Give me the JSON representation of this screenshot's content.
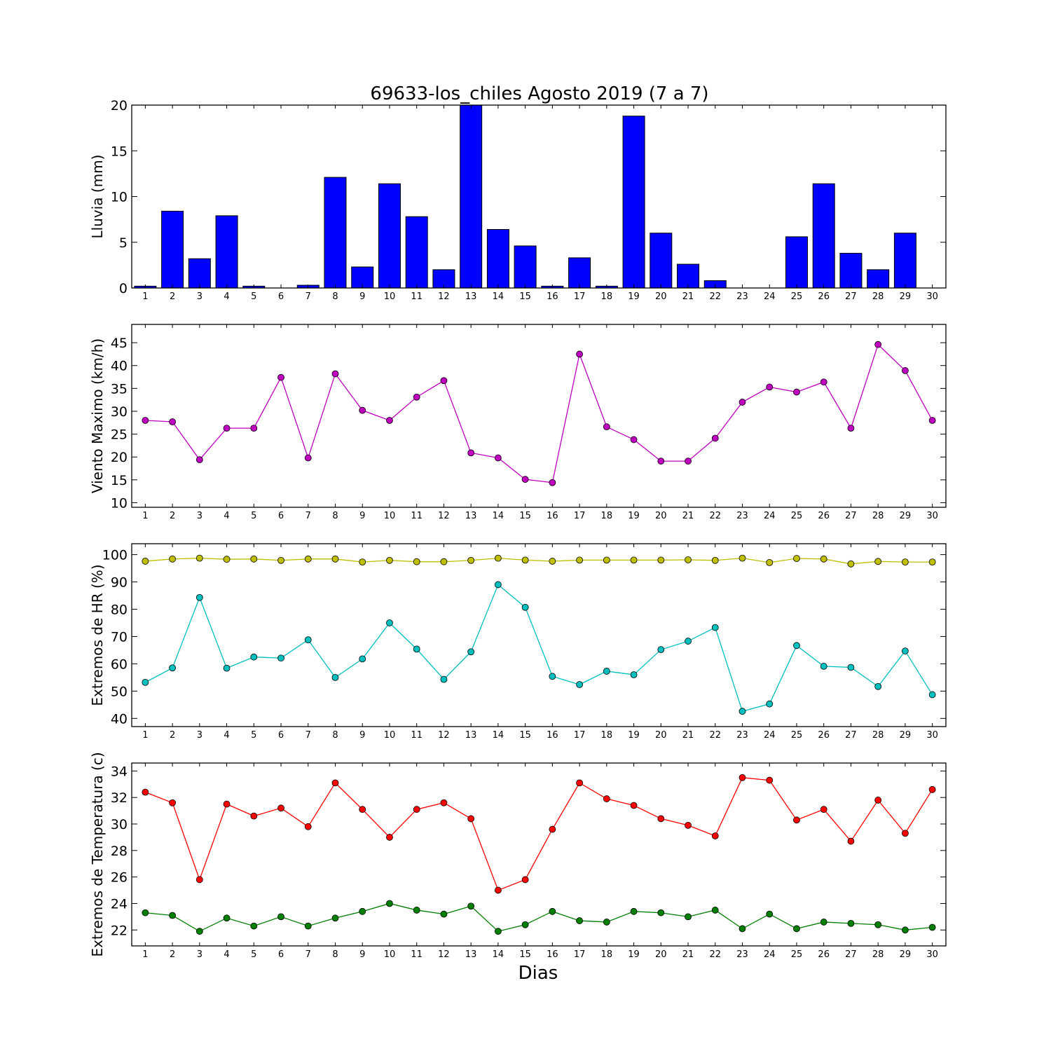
{
  "figure": {
    "title": "69633-los_chiles Agosto 2019  (7 a 7)",
    "xlabel": "Dias"
  },
  "chart_data": [
    {
      "type": "bar",
      "ylabel": "Lluvia (mm)",
      "ylim": [
        0,
        20
      ],
      "yticks": [
        0,
        5,
        10,
        15,
        20
      ],
      "grid": false,
      "categories": [
        "1",
        "2",
        "3",
        "4",
        "5",
        "6",
        "7",
        "8",
        "9",
        "10",
        "11",
        "12",
        "13",
        "14",
        "15",
        "16",
        "17",
        "18",
        "19",
        "20",
        "21",
        "22",
        "23",
        "24",
        "25",
        "26",
        "27",
        "28",
        "29",
        "30"
      ],
      "series": [
        {
          "color": "#0000ff",
          "values": [
            0.2,
            8.4,
            3.2,
            7.9,
            0.2,
            0,
            0.3,
            12.1,
            2.3,
            11.4,
            7.8,
            2.0,
            20.0,
            6.4,
            4.6,
            0.2,
            3.3,
            0.2,
            18.8,
            6.0,
            2.6,
            0.8,
            0,
            0,
            5.6,
            11.4,
            3.8,
            2.0,
            6.0,
            0
          ]
        }
      ]
    },
    {
      "type": "line",
      "ylabel": "Viento Maximo (km/h)",
      "ylim": [
        9,
        49
      ],
      "yticks": [
        10,
        15,
        20,
        25,
        30,
        35,
        40,
        45
      ],
      "grid": false,
      "categories": [
        "1",
        "2",
        "3",
        "4",
        "5",
        "6",
        "7",
        "8",
        "9",
        "10",
        "11",
        "12",
        "13",
        "14",
        "15",
        "16",
        "17",
        "18",
        "19",
        "20",
        "21",
        "22",
        "23",
        "24",
        "25",
        "26",
        "27",
        "28",
        "29",
        "30"
      ],
      "series": [
        {
          "color": "#bf00bf",
          "values": [
            28.0,
            27.7,
            19.4,
            26.3,
            26.3,
            37.4,
            19.8,
            38.2,
            30.2,
            28.0,
            33.1,
            36.7,
            20.9,
            19.8,
            15.1,
            14.4,
            42.5,
            26.6,
            23.8,
            19.1,
            19.1,
            24.1,
            32.0,
            35.3,
            34.2,
            36.4,
            26.3,
            44.6,
            38.9,
            28.0
          ]
        }
      ]
    },
    {
      "type": "line",
      "ylabel": "Extremos de HR (%)",
      "ylim": [
        37,
        104
      ],
      "yticks": [
        40,
        50,
        60,
        70,
        80,
        90,
        100
      ],
      "grid": false,
      "categories": [
        "1",
        "2",
        "3",
        "4",
        "5",
        "6",
        "7",
        "8",
        "9",
        "10",
        "11",
        "12",
        "13",
        "14",
        "15",
        "16",
        "17",
        "18",
        "19",
        "20",
        "21",
        "22",
        "23",
        "24",
        "25",
        "26",
        "27",
        "28",
        "29",
        "30"
      ],
      "series": [
        {
          "color": "#bfbf00",
          "values": [
            97.6,
            98.4,
            98.7,
            98.3,
            98.4,
            97.9,
            98.4,
            98.4,
            97.3,
            97.9,
            97.4,
            97.4,
            97.9,
            98.7,
            98.0,
            97.6,
            98.0,
            98.0,
            98.0,
            98.0,
            98.1,
            97.9,
            98.7,
            97.1,
            98.6,
            98.4,
            96.6,
            97.5,
            97.3,
            97.3
          ]
        },
        {
          "color": "#00bfbf",
          "values": [
            53.2,
            58.5,
            84.3,
            58.4,
            62.5,
            62.1,
            68.8,
            55.0,
            61.8,
            75.0,
            65.4,
            54.3,
            64.4,
            89.0,
            80.7,
            55.4,
            52.4,
            57.3,
            56.0,
            65.2,
            68.3,
            73.3,
            42.6,
            45.3,
            66.7,
            59.1,
            58.7,
            51.7,
            64.7,
            48.7
          ]
        }
      ]
    },
    {
      "type": "line",
      "ylabel": "Extremos de Temperatura (c)",
      "ylim": [
        20.8,
        34.6
      ],
      "yticks": [
        22,
        24,
        26,
        28,
        30,
        32,
        34
      ],
      "grid": false,
      "categories": [
        "1",
        "2",
        "3",
        "4",
        "5",
        "6",
        "7",
        "8",
        "9",
        "10",
        "11",
        "12",
        "13",
        "14",
        "15",
        "16",
        "17",
        "18",
        "19",
        "20",
        "21",
        "22",
        "23",
        "24",
        "25",
        "26",
        "27",
        "28",
        "29",
        "30"
      ],
      "series": [
        {
          "color": "#ff0000",
          "values": [
            32.4,
            31.6,
            25.8,
            31.5,
            30.6,
            31.2,
            29.8,
            33.1,
            31.1,
            29.0,
            31.1,
            31.6,
            30.4,
            25.0,
            25.8,
            29.6,
            33.1,
            31.9,
            31.4,
            30.4,
            29.9,
            29.1,
            33.5,
            33.3,
            30.3,
            31.1,
            28.7,
            31.8,
            29.3,
            32.6
          ]
        },
        {
          "color": "#007f00",
          "values": [
            23.3,
            23.1,
            21.9,
            22.9,
            22.3,
            23.0,
            22.3,
            22.9,
            23.4,
            24.0,
            23.5,
            23.2,
            23.8,
            21.9,
            22.4,
            23.4,
            22.7,
            22.6,
            23.4,
            23.3,
            23.0,
            23.5,
            22.1,
            23.2,
            22.1,
            22.6,
            22.5,
            22.4,
            22.0,
            22.2
          ]
        }
      ]
    }
  ]
}
